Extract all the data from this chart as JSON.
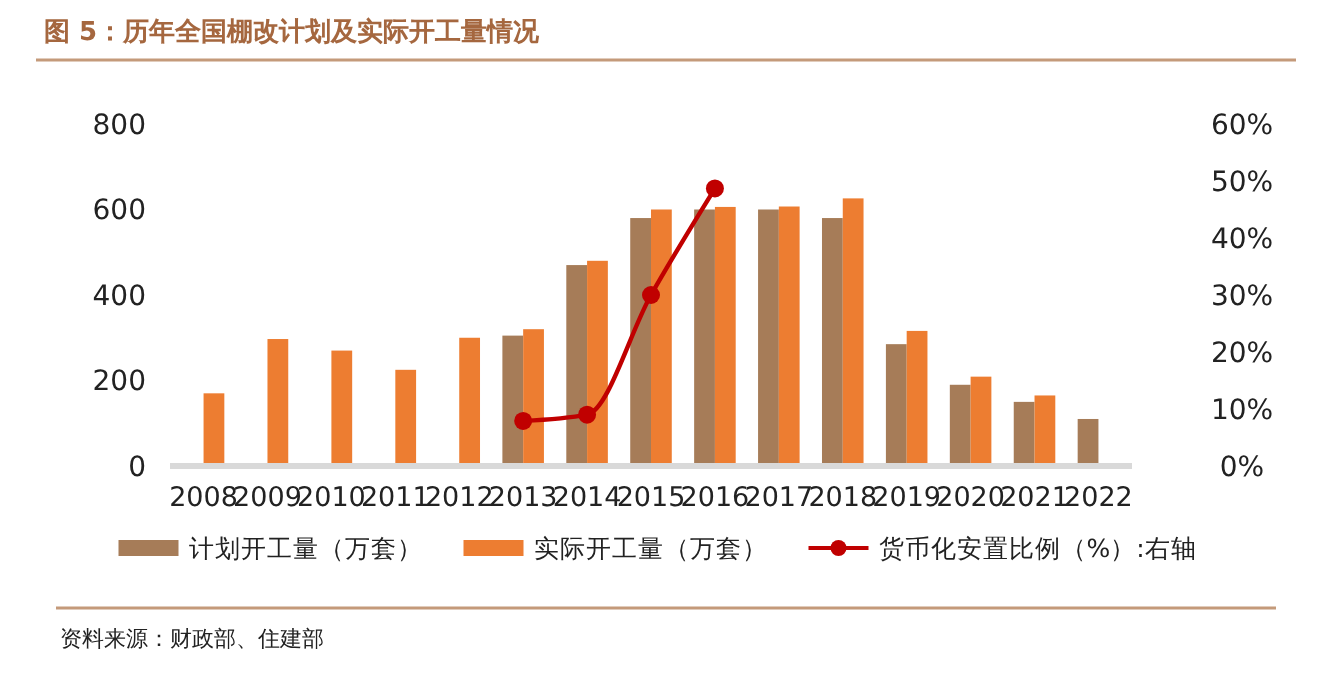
{
  "chart_data": {
    "type": "bar",
    "title": "图 5：历年全国棚改计划及实际开工量情况",
    "categories": [
      "2008",
      "2009",
      "2010",
      "2011",
      "2012",
      "2013",
      "2014",
      "2015",
      "2016",
      "2017",
      "2018",
      "2019",
      "2020",
      "2021",
      "2022"
    ],
    "series": [
      {
        "name": "计划开工量（万套）",
        "color": "#a67c58",
        "values": [
          null,
          null,
          null,
          null,
          null,
          305,
          470,
          580,
          600,
          600,
          580,
          285,
          190,
          150,
          110
        ]
      },
      {
        "name": "实际开工量（万套）",
        "color": "#ed7d31",
        "values": [
          170,
          297,
          270,
          225,
          300,
          320,
          480,
          600,
          606,
          607,
          626,
          316,
          209,
          165,
          null
        ]
      },
      {
        "name": "货币化安置比例（%）:右轴",
        "type": "line",
        "axis": "y2",
        "color": "#c00000",
        "marker": "circle",
        "values": [
          null,
          null,
          null,
          null,
          null,
          7.9,
          9,
          30,
          48.7,
          null,
          null,
          null,
          null,
          null,
          null
        ]
      }
    ],
    "ylim": [
      0,
      800
    ],
    "yticks": [
      0,
      200,
      400,
      600,
      800
    ],
    "y2lim": [
      0,
      60
    ],
    "y2ticks": [
      {
        "value": 0,
        "label": "0%"
      },
      {
        "value": 10,
        "label": "10%"
      },
      {
        "value": 20,
        "label": "20%"
      },
      {
        "value": 30,
        "label": "30%"
      },
      {
        "value": 40,
        "label": "40%"
      },
      {
        "value": 50,
        "label": "50%"
      },
      {
        "value": 60,
        "label": "60%"
      }
    ],
    "legend": "bottom",
    "grid": false,
    "annotations": [
      "资料来源：财政部、住建部"
    ]
  }
}
